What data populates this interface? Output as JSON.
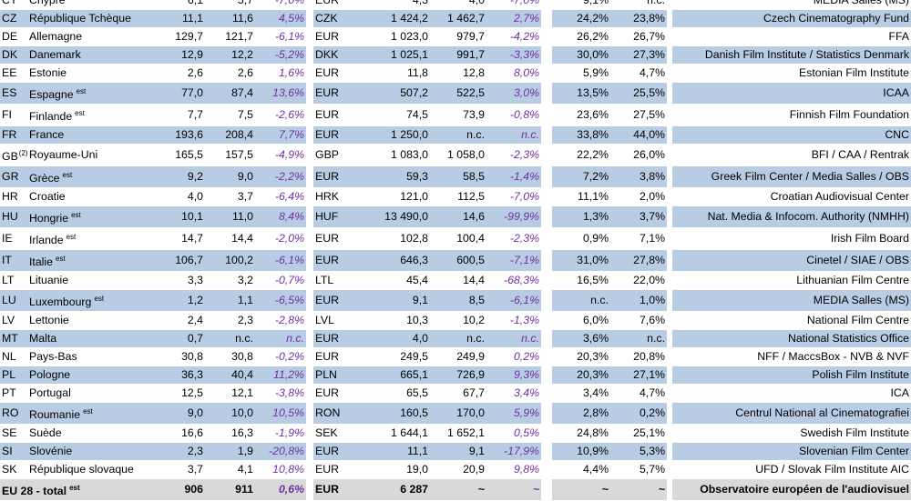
{
  "rows": [
    {
      "code": "CY",
      "name": "Chypre",
      "sup": "",
      "a": "6,1",
      "b": "5,7",
      "c": "-7,0%",
      "cur": "EUR",
      "d": "4,3",
      "e": "4,0",
      "f": "-7,0%",
      "g": "9,1%",
      "h": "n.c.",
      "src": "MEDIA Salles (MS)"
    },
    {
      "code": "CZ",
      "name": "République Tchèque",
      "sup": "",
      "a": "11,1",
      "b": "11,6",
      "c": "4,5%",
      "cur": "CZK",
      "d": "1 424,2",
      "e": "1 462,7",
      "f": "2,7%",
      "g": "24,2%",
      "h": "23,8%",
      "src": "Czech Cinematography Fund"
    },
    {
      "code": "DE",
      "name": "Allemagne",
      "sup": "",
      "a": "129,7",
      "b": "121,7",
      "c": "-6,1%",
      "cur": "EUR",
      "d": "1 023,0",
      "e": "979,7",
      "f": "-4,2%",
      "g": "26,2%",
      "h": "26,7%",
      "src": "FFA"
    },
    {
      "code": "DK",
      "name": "Danemark",
      "sup": "",
      "a": "12,9",
      "b": "12,2",
      "c": "-5,2%",
      "cur": "DKK",
      "d": "1 025,1",
      "e": "991,7",
      "f": "-3,3%",
      "g": "30,0%",
      "h": "27,3%",
      "src": "Danish Film Institute / Statistics Denmark"
    },
    {
      "code": "EE",
      "name": "Estonie",
      "sup": "",
      "a": "2,6",
      "b": "2,6",
      "c": "1,6%",
      "cur": "EUR",
      "d": "11,8",
      "e": "12,8",
      "f": "8,0%",
      "g": "5,9%",
      "h": "4,7%",
      "src": "Estonian Film Institute"
    },
    {
      "code": "ES",
      "name": "Espagne",
      "sup": "est",
      "a": "77,0",
      "b": "87,4",
      "c": "13,6%",
      "cur": "EUR",
      "d": "507,2",
      "e": "522,5",
      "f": "3,0%",
      "g": "13,5%",
      "h": "25,5%",
      "src": "ICAA"
    },
    {
      "code": "FI",
      "name": "Finlande",
      "sup": "est",
      "a": "7,7",
      "b": "7,5",
      "c": "-2,6%",
      "cur": "EUR",
      "d": "74,5",
      "e": "73,9",
      "f": "-0,8%",
      "g": "23,6%",
      "h": "27,5%",
      "src": "Finnish Film Foundation"
    },
    {
      "code": "FR",
      "name": "France",
      "sup": "",
      "a": "193,6",
      "b": "208,4",
      "c": "7,7%",
      "cur": "EUR",
      "d": "1 250,0",
      "e": "n.c.",
      "f": "n.c.",
      "g": "33,8%",
      "h": "44,0%",
      "src": "CNC"
    },
    {
      "code": "GB",
      "codesup": "(2)",
      "name": "Royaume-Uni",
      "sup": "",
      "a": "165,5",
      "b": "157,5",
      "c": "-4,9%",
      "cur": "GBP",
      "d": "1 083,0",
      "e": "1 058,0",
      "f": "-2,3%",
      "g": "22,2%",
      "h": "26,0%",
      "src": "BFI / CAA / Rentrak"
    },
    {
      "code": "GR",
      "name": "Grèce",
      "sup": "est",
      "a": "9,2",
      "b": "9,0",
      "c": "-2,2%",
      "cur": "EUR",
      "d": "59,3",
      "e": "58,5",
      "f": "-1,4%",
      "g": "7,2%",
      "h": "3,8%",
      "src": "Greek Film Center / Media Salles / OBS"
    },
    {
      "code": "HR",
      "name": "Croatie",
      "sup": "",
      "a": "4,0",
      "b": "3,7",
      "c": "-6,4%",
      "cur": "HRK",
      "d": "121,0",
      "e": "112,5",
      "f": "-7,0%",
      "g": "11,1%",
      "h": "2,0%",
      "src": "Croatian Audiovisual Center"
    },
    {
      "code": "HU",
      "name": "Hongrie",
      "sup": "est",
      "a": "10,1",
      "b": "11,0",
      "c": "8,4%",
      "cur": "HUF",
      "d": "13 490,0",
      "e": "14,6",
      "f": "-99,9%",
      "g": "1,3%",
      "h": "3,7%",
      "src": "Nat. Media & Infocom. Authority (NMHH)"
    },
    {
      "code": "IE",
      "name": "Irlande",
      "sup": "est",
      "a": "14,7",
      "b": "14,4",
      "c": "-2,0%",
      "cur": "EUR",
      "d": "102,8",
      "e": "100,4",
      "f": "-2,3%",
      "g": "0,9%",
      "h": "7,1%",
      "src": "Irish Film Board"
    },
    {
      "code": "IT",
      "name": "Italie",
      "sup": "est",
      "a": "106,7",
      "b": "100,2",
      "c": "-6,1%",
      "cur": "EUR",
      "d": "646,3",
      "e": "600,5",
      "f": "-7,1%",
      "g": "31,0%",
      "h": "27,8%",
      "src": "Cinetel / SIAE / OBS"
    },
    {
      "code": "LT",
      "name": "Lituanie",
      "sup": "",
      "a": "3,3",
      "b": "3,2",
      "c": "-0,7%",
      "cur": "LTL",
      "d": "45,4",
      "e": "14,4",
      "f": "-68,3%",
      "g": "16,5%",
      "h": "22,0%",
      "src": "Lithuanian Film Centre"
    },
    {
      "code": "LU",
      "name": "Luxembourg",
      "sup": "est",
      "a": "1,2",
      "b": "1,1",
      "c": "-6,5%",
      "cur": "EUR",
      "d": "9,1",
      "e": "8,5",
      "f": "-6,1%",
      "g": "n.c.",
      "h": "1,0%",
      "src": "MEDIA Salles (MS)"
    },
    {
      "code": "LV",
      "name": "Lettonie",
      "sup": "",
      "a": "2,4",
      "b": "2,3",
      "c": "-2,8%",
      "cur": "LVL",
      "d": "10,3",
      "e": "10,2",
      "f": "-1,3%",
      "g": "6,0%",
      "h": "7,6%",
      "src": "National Film Centre"
    },
    {
      "code": "MT",
      "name": "Malta",
      "sup": "",
      "a": "0,7",
      "b": "n.c.",
      "c": "n.c.",
      "cur": "EUR",
      "d": "4,0",
      "e": "n.c.",
      "f": "n.c.",
      "g": "3,6%",
      "h": "n.c.",
      "src": "National Statistics Office"
    },
    {
      "code": "NL",
      "name": "Pays-Bas",
      "sup": "",
      "a": "30,8",
      "b": "30,8",
      "c": "-0,2%",
      "cur": "EUR",
      "d": "249,5",
      "e": "249,9",
      "f": "0,2%",
      "g": "20,3%",
      "h": "20,8%",
      "src": "NFF / MaccsBox - NVB & NVF"
    },
    {
      "code": "PL",
      "name": "Pologne",
      "sup": "",
      "a": "36,3",
      "b": "40,4",
      "c": "11,2%",
      "cur": "PLN",
      "d": "665,1",
      "e": "726,9",
      "f": "9,3%",
      "g": "20,3%",
      "h": "27,1%",
      "src": "Polish Film Institute"
    },
    {
      "code": "PT",
      "name": "Portugal",
      "sup": "",
      "a": "12,5",
      "b": "12,1",
      "c": "-3,8%",
      "cur": "EUR",
      "d": "65,5",
      "e": "67,7",
      "f": "3,4%",
      "g": "3,4%",
      "h": "4,7%",
      "src": "ICA"
    },
    {
      "code": "RO",
      "name": "Roumanie",
      "sup": "est",
      "a": "9,0",
      "b": "10,0",
      "c": "10,5%",
      "cur": "RON",
      "d": "160,5",
      "e": "170,0",
      "f": "5,9%",
      "g": "2,8%",
      "h": "0,2%",
      "src": "Centrul National al Cinematografiei"
    },
    {
      "code": "SE",
      "name": "Suède",
      "sup": "",
      "a": "16,6",
      "b": "16,3",
      "c": "-1,9%",
      "cur": "SEK",
      "d": "1 644,1",
      "e": "1 652,1",
      "f": "0,5%",
      "g": "24,8%",
      "h": "25,1%",
      "src": "Swedish Film Institute"
    },
    {
      "code": "SI",
      "name": "Slovénie",
      "sup": "",
      "a": "2,3",
      "b": "1,9",
      "c": "-20,8%",
      "cur": "EUR",
      "d": "11,1",
      "e": "9,1",
      "f": "-17,9%",
      "g": "10,9%",
      "h": "5,3%",
      "src": "Slovenian Film Center"
    },
    {
      "code": "SK",
      "name": "République slovaque",
      "sup": "",
      "a": "3,7",
      "b": "4,1",
      "c": "10,8%",
      "cur": "EUR",
      "d": "19,0",
      "e": "20,9",
      "f": "9,8%",
      "g": "4,4%",
      "h": "5,7%",
      "src": "UFD / Slovak Film Institute AIC"
    }
  ],
  "total": {
    "code": "EU 28 - total",
    "sup": "est",
    "a": "906",
    "b": "911",
    "c": "0,6%",
    "cur": "EUR",
    "d": "6 287",
    "e": "~",
    "f": "~",
    "g": "~",
    "h": "~",
    "src": "Observatoire européen de l'audiovisuel"
  }
}
